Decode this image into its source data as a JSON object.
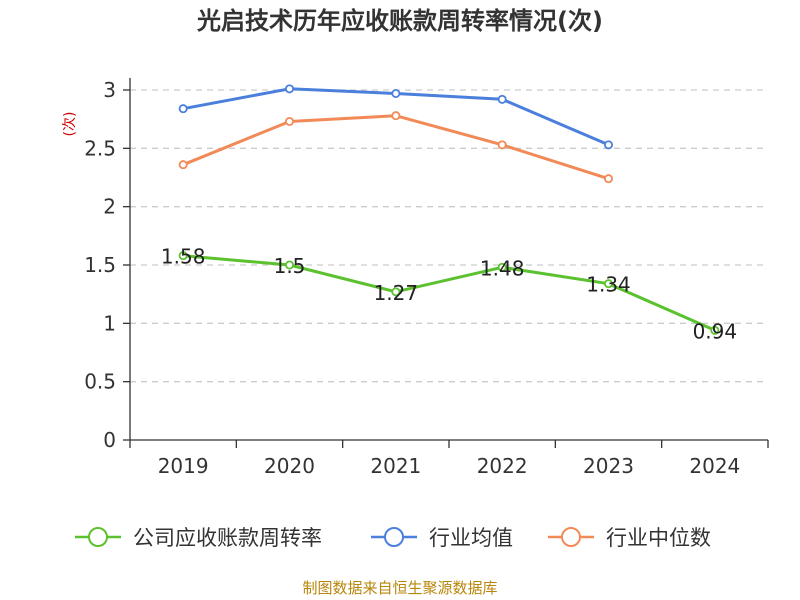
{
  "chart_data": {
    "type": "line",
    "title": "光启技术历年应收账款周转率情况(次)",
    "ylabel": "(次)",
    "xlabel": "",
    "categories": [
      "2019",
      "2020",
      "2021",
      "2022",
      "2023",
      "2024"
    ],
    "ylim": [
      0,
      3
    ],
    "yticks": [
      "0",
      "0.5",
      "1",
      "1.5",
      "2",
      "2.5",
      "3"
    ],
    "grid": true,
    "legend_position": "bottom",
    "series": [
      {
        "name": "公司应收账款周转率",
        "values": [
          1.58,
          1.5,
          1.27,
          1.48,
          1.34,
          0.94
        ],
        "labels": [
          "1.58",
          "1.5",
          "1.27",
          "1.48",
          "1.34",
          "0.94"
        ],
        "color": "#5cc12f"
      },
      {
        "name": "行业均值",
        "values": [
          2.84,
          3.01,
          2.97,
          2.92,
          2.53,
          null
        ],
        "color": "#4a7fdc"
      },
      {
        "name": "行业中位数",
        "values": [
          2.36,
          2.73,
          2.78,
          2.53,
          2.24,
          null
        ],
        "color": "#f28a57"
      }
    ]
  },
  "source": "制图数据来自恒生聚源数据库"
}
